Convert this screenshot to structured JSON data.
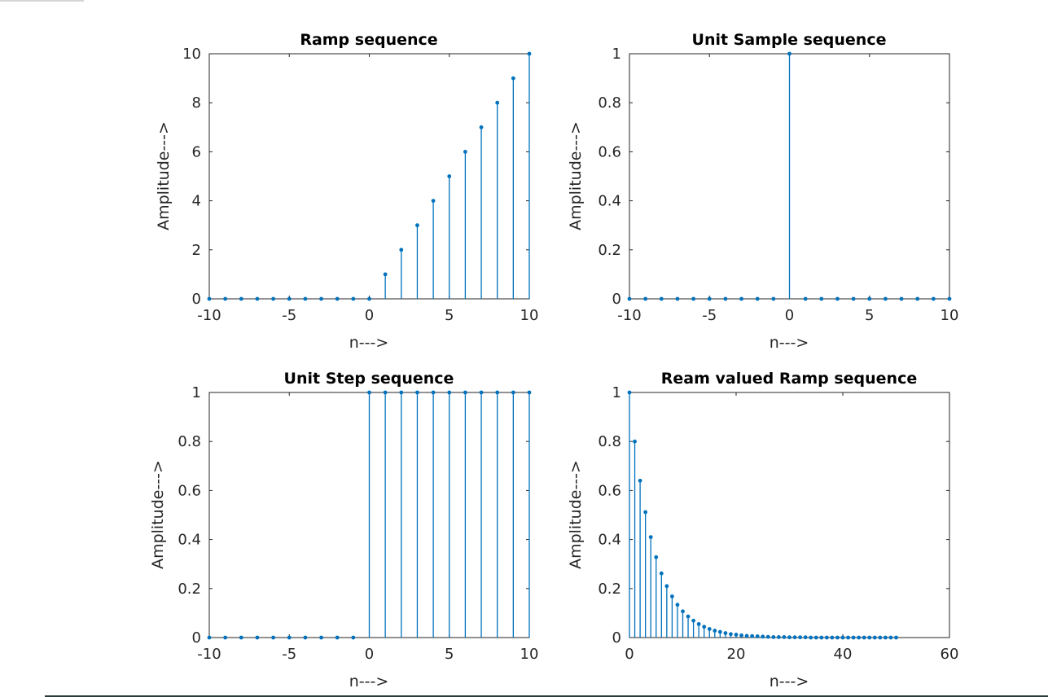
{
  "chart_data": [
    {
      "type": "stem",
      "title": "Ramp sequence",
      "xlabel": "n--->",
      "ylabel": "Amplitude--->",
      "xlim": [
        -10,
        10
      ],
      "ylim": [
        0,
        10
      ],
      "xticks": [
        "-10",
        "-5",
        "0",
        "5",
        "10"
      ],
      "yticks": [
        "0",
        "2",
        "4",
        "6",
        "8",
        "10"
      ],
      "x": [
        -10,
        -9,
        -8,
        -7,
        -6,
        -5,
        -4,
        -3,
        -2,
        -1,
        0,
        1,
        2,
        3,
        4,
        5,
        6,
        7,
        8,
        9,
        10
      ],
      "y": [
        0,
        0,
        0,
        0,
        0,
        0,
        0,
        0,
        0,
        0,
        0,
        1,
        2,
        3,
        4,
        5,
        6,
        7,
        8,
        9,
        10
      ]
    },
    {
      "type": "stem",
      "title": "Unit Sample sequence",
      "xlabel": "n--->",
      "ylabel": "Amplitude--->",
      "xlim": [
        -10,
        10
      ],
      "ylim": [
        0,
        1
      ],
      "xticks": [
        "-10",
        "-5",
        "0",
        "5",
        "10"
      ],
      "yticks": [
        "0",
        "0.2",
        "0.4",
        "0.6",
        "0.8",
        "1"
      ],
      "x": [
        -10,
        -9,
        -8,
        -7,
        -6,
        -5,
        -4,
        -3,
        -2,
        -1,
        0,
        1,
        2,
        3,
        4,
        5,
        6,
        7,
        8,
        9,
        10
      ],
      "y": [
        0,
        0,
        0,
        0,
        0,
        0,
        0,
        0,
        0,
        0,
        1,
        0,
        0,
        0,
        0,
        0,
        0,
        0,
        0,
        0,
        0
      ]
    },
    {
      "type": "stem",
      "title": "Unit Step sequence",
      "xlabel": "n--->",
      "ylabel": "Amplitude--->",
      "xlim": [
        -10,
        10
      ],
      "ylim": [
        0,
        1
      ],
      "xticks": [
        "-10",
        "-5",
        "0",
        "5",
        "10"
      ],
      "yticks": [
        "0",
        "0.2",
        "0.4",
        "0.6",
        "0.8",
        "1"
      ],
      "x": [
        -10,
        -9,
        -8,
        -7,
        -6,
        -5,
        -4,
        -3,
        -2,
        -1,
        0,
        1,
        2,
        3,
        4,
        5,
        6,
        7,
        8,
        9,
        10
      ],
      "y": [
        0,
        0,
        0,
        0,
        0,
        0,
        0,
        0,
        0,
        0,
        1,
        1,
        1,
        1,
        1,
        1,
        1,
        1,
        1,
        1,
        1
      ]
    },
    {
      "type": "stem",
      "title": "Ream valued Ramp sequence",
      "xlabel": "n--->",
      "ylabel": "Amplitude--->",
      "xlim": [
        0,
        60
      ],
      "ylim": [
        0,
        1
      ],
      "xticks": [
        "0",
        "20",
        "40",
        "60"
      ],
      "yticks": [
        "0",
        "0.2",
        "0.4",
        "0.6",
        "0.8",
        "1"
      ],
      "x": [
        0,
        1,
        2,
        3,
        4,
        5,
        6,
        7,
        8,
        9,
        10,
        11,
        12,
        13,
        14,
        15,
        16,
        17,
        18,
        19,
        20,
        21,
        22,
        23,
        24,
        25,
        26,
        27,
        28,
        29,
        30,
        31,
        32,
        33,
        34,
        35,
        36,
        37,
        38,
        39,
        40,
        41,
        42,
        43,
        44,
        45,
        46,
        47,
        48,
        49,
        50
      ],
      "y": [
        1,
        0.8,
        0.64,
        0.512,
        0.41,
        0.328,
        0.262,
        0.21,
        0.168,
        0.134,
        0.107,
        0.086,
        0.069,
        0.055,
        0.044,
        0.035,
        0.028,
        0.023,
        0.018,
        0.014,
        0.012,
        0.009,
        0.007,
        0.006,
        0.005,
        0.004,
        0.003,
        0.002,
        0.002,
        0.002,
        0.001,
        0.001,
        0.001,
        0.001,
        0,
        0,
        0,
        0,
        0,
        0,
        0,
        0,
        0,
        0,
        0,
        0,
        0,
        0,
        0,
        0,
        0
      ]
    }
  ],
  "colors": {
    "stem": "#0072bd",
    "axes": "#262626"
  }
}
